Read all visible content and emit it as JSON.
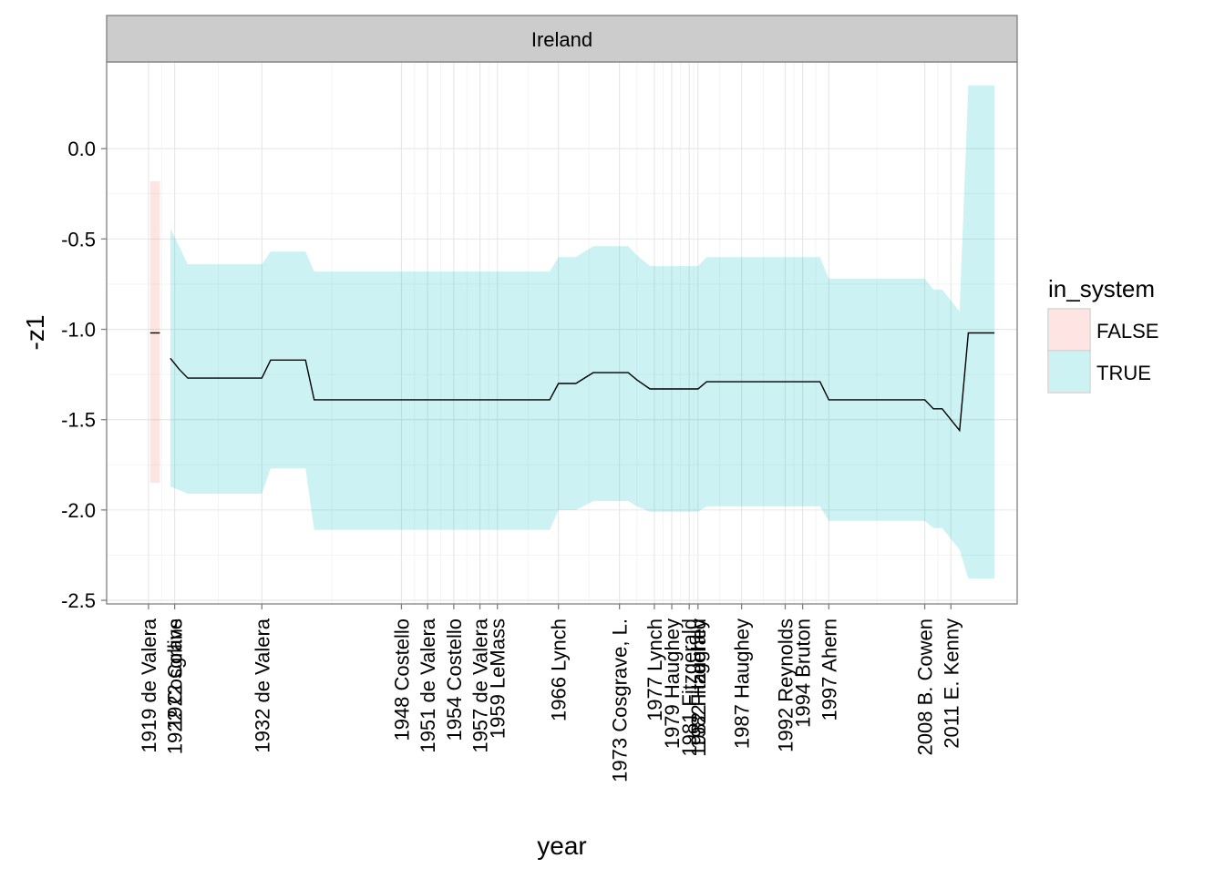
{
  "chart_data": {
    "type": "area",
    "facet_label": "Ireland",
    "xlabel": "year",
    "ylabel": "-z1",
    "ylim": [
      -2.52,
      0.48
    ],
    "xlim": [
      1914.2,
      2018.6
    ],
    "y_ticks": [
      {
        "value": 0.0,
        "label": "0.0"
      },
      {
        "value": -0.5,
        "label": "-0.5"
      },
      {
        "value": -1.0,
        "label": "-1.0"
      },
      {
        "value": -1.5,
        "label": "-1.5"
      },
      {
        "value": -2.0,
        "label": "-2.0"
      },
      {
        "value": -2.5,
        "label": "-2.5"
      }
    ],
    "x_ticks": [
      {
        "year": 1919,
        "label": "1919 de Valera"
      },
      {
        "year": 1922,
        "label": "1922 Collins"
      },
      {
        "year": 1922,
        "label": "1922 Cosgrave"
      },
      {
        "year": 1932,
        "label": "1932 de Valera"
      },
      {
        "year": 1948,
        "label": "1948 Costello"
      },
      {
        "year": 1951,
        "label": "1951 de Valera"
      },
      {
        "year": 1954,
        "label": "1954 Costello"
      },
      {
        "year": 1957,
        "label": "1957 de Valera"
      },
      {
        "year": 1959,
        "label": "1959 LeMass"
      },
      {
        "year": 1966,
        "label": "1966 Lynch"
      },
      {
        "year": 1973,
        "label": "1973 Cosgrave, L."
      },
      {
        "year": 1977,
        "label": "1977 Lynch"
      },
      {
        "year": 1979,
        "label": "1979 Haughey"
      },
      {
        "year": 1981,
        "label": "1981 Fitzgerald"
      },
      {
        "year": 1982,
        "label": "1982 Haughey"
      },
      {
        "year": 1982,
        "label": "1982 Fitzgerald"
      },
      {
        "year": 1987,
        "label": "1987 Haughey"
      },
      {
        "year": 1992,
        "label": "1992 Reynolds"
      },
      {
        "year": 1994,
        "label": "1994 Bruton"
      },
      {
        "year": 1997,
        "label": "1997 Ahern"
      },
      {
        "year": 2008,
        "label": "2008 B. Cowen"
      },
      {
        "year": 2011,
        "label": "2011 E. Kenny"
      }
    ],
    "series": [
      {
        "name": "FALSE",
        "color": "#F8766D",
        "fill_opacity": 0.2,
        "x": [
          1919.2,
          1920.3
        ],
        "mean": [
          -1.02,
          -1.02
        ],
        "lower": [
          -1.85,
          -1.85
        ],
        "upper": [
          -0.18,
          -0.18
        ]
      },
      {
        "name": "TRUE",
        "color": "#00BFC4",
        "fill_opacity": 0.2,
        "x": [
          1921.5,
          1922.5,
          1923.5,
          1932.0,
          1933.0,
          1937.0,
          1938.0,
          1965.0,
          1966.0,
          1968.0,
          1970.0,
          1974.0,
          1975.0,
          1976.5,
          1982.0,
          1983.0,
          1996.0,
          1997.0,
          2008.0,
          2009.0,
          2010.0,
          2012.0,
          2013.0,
          2016.0
        ],
        "mean": [
          -1.16,
          -1.22,
          -1.27,
          -1.27,
          -1.17,
          -1.17,
          -1.39,
          -1.39,
          -1.3,
          -1.3,
          -1.24,
          -1.24,
          -1.28,
          -1.33,
          -1.33,
          -1.29,
          -1.29,
          -1.39,
          -1.39,
          -1.44,
          -1.44,
          -1.56,
          -1.02,
          -1.02
        ],
        "lower": [
          -1.87,
          -1.89,
          -1.91,
          -1.91,
          -1.77,
          -1.77,
          -2.11,
          -2.11,
          -2.0,
          -2.0,
          -1.95,
          -1.95,
          -1.98,
          -2.01,
          -2.01,
          -1.98,
          -1.98,
          -2.06,
          -2.06,
          -2.1,
          -2.1,
          -2.22,
          -2.38,
          -2.38
        ],
        "upper": [
          -0.44,
          -0.54,
          -0.64,
          -0.64,
          -0.57,
          -0.57,
          -0.68,
          -0.68,
          -0.6,
          -0.6,
          -0.54,
          -0.54,
          -0.59,
          -0.65,
          -0.65,
          -0.6,
          -0.6,
          -0.72,
          -0.72,
          -0.78,
          -0.78,
          -0.9,
          0.35,
          0.35
        ]
      }
    ],
    "legend": {
      "title": "in_system",
      "position": "right",
      "entries": [
        {
          "label": "FALSE",
          "color": "#F8766D"
        },
        {
          "label": "TRUE",
          "color": "#00BFC4"
        }
      ]
    },
    "grid": true
  }
}
